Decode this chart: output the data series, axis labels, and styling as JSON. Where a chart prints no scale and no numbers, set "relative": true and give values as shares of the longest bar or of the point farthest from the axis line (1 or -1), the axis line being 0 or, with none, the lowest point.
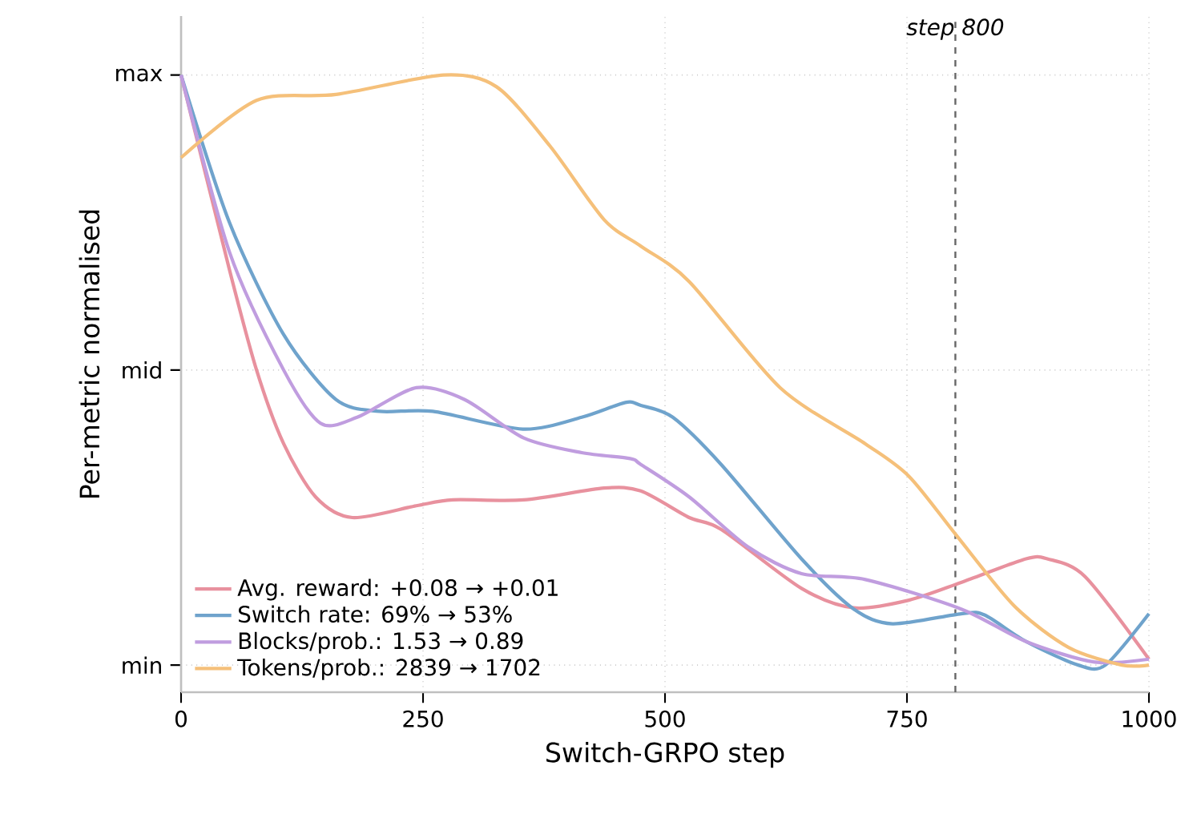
{
  "chart_data": {
    "type": "line",
    "xlabel": "Switch-GRPO step",
    "ylabel": "Per-metric normalised",
    "xlim": [
      0,
      1000
    ],
    "relative": true,
    "xticks": [
      0,
      250,
      500,
      750,
      1000
    ],
    "annotations": [
      "min",
      "mid",
      "max"
    ],
    "grid": true,
    "legend": "bottom left",
    "ref_lines": [
      {
        "axis": "x",
        "value": 800,
        "label": "step 800",
        "color": "#666666",
        "line_style": "dashed"
      }
    ],
    "series": [
      {
        "name": "Avg. reward: +0.08 → +0.01",
        "color": "#e8919e",
        "x": [
          0,
          50,
          78,
          106,
          139,
          177,
          243,
          281,
          354,
          437,
          475,
          525,
          558,
          641,
          695,
          752,
          806,
          873,
          895,
          934,
          1000
        ],
        "values": [
          1.0,
          0.67,
          0.5,
          0.375,
          0.285,
          0.25,
          0.27,
          0.28,
          0.28,
          0.3,
          0.295,
          0.25,
          0.23,
          0.13,
          0.097,
          0.11,
          0.14,
          0.18,
          0.18,
          0.15,
          0.01
        ]
      },
      {
        "name": "Switch rate: 69% → 53%",
        "color": "#6fa3cc",
        "x": [
          0,
          50,
          106,
          160,
          205,
          260,
          353,
          414,
          459,
          475,
          508,
          558,
          641,
          695,
          735,
          806,
          830,
          873,
          927,
          955,
          1000
        ],
        "values": [
          1.0,
          0.75,
          0.56,
          0.45,
          0.43,
          0.43,
          0.4,
          0.42,
          0.445,
          0.44,
          0.42,
          0.34,
          0.18,
          0.095,
          0.07,
          0.087,
          0.085,
          0.04,
          0.0,
          0.0,
          0.087
        ]
      },
      {
        "name": "Blocks/prob.: 1.53 → 0.89",
        "color": "#c09ddf",
        "x": [
          0,
          50,
          106,
          144,
          182,
          243,
          293,
          354,
          414,
          464,
          475,
          525,
          586,
          641,
          707,
          806,
          873,
          944,
          1000
        ],
        "values": [
          1.0,
          0.7,
          0.5,
          0.41,
          0.42,
          0.47,
          0.45,
          0.385,
          0.36,
          0.35,
          0.34,
          0.285,
          0.2,
          0.155,
          0.145,
          0.095,
          0.04,
          0.005,
          0.01
        ]
      },
      {
        "name": "Tokens/prob.: 2839 → 1702",
        "color": "#f5c07a",
        "x": [
          0,
          78,
          160,
          271,
          326,
          381,
          437,
          475,
          525,
          619,
          707,
          752,
          801,
          861,
          917,
          972,
          1000
        ],
        "values": [
          0.86,
          0.957,
          0.967,
          1.0,
          0.98,
          0.88,
          0.755,
          0.71,
          0.65,
          0.47,
          0.375,
          0.32,
          0.22,
          0.1,
          0.03,
          0.0,
          0.0
        ]
      }
    ]
  }
}
